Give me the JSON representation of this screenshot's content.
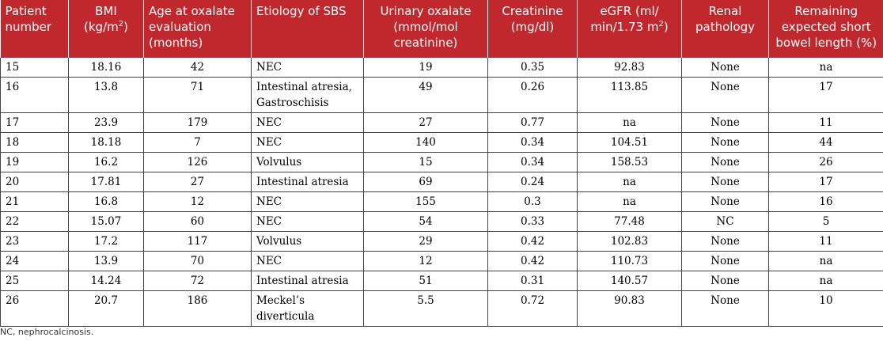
{
  "table": {
    "headers": [
      {
        "text": "Patient number",
        "sup": "",
        "after": ""
      },
      {
        "text": "BMI (kg/m",
        "sup": "2",
        "after": ")"
      },
      {
        "text": "Age at oxalate evaluation (months)",
        "sup": "",
        "after": ""
      },
      {
        "text": "Etiology of SBS",
        "sup": "",
        "after": ""
      },
      {
        "text": "Urinary oxalate (mmol/mol creatinine)",
        "sup": "",
        "after": ""
      },
      {
        "text": "Creatinine (mg/dl)",
        "sup": "",
        "after": ""
      },
      {
        "text": "eGFR (ml/ min/1.73 m",
        "sup": "2",
        "after": ")"
      },
      {
        "text": "Renal pathology",
        "sup": "",
        "after": ""
      },
      {
        "text": "Remaining expected short bowel length (%)",
        "sup": "",
        "after": ""
      }
    ],
    "rows": [
      [
        "15",
        "18.16",
        "42",
        "NEC",
        "19",
        "0.35",
        "92.83",
        "None",
        "na"
      ],
      [
        "16",
        "13.8",
        "71",
        "Intestinal atresia, Gastroschisis",
        "49",
        "0.26",
        "113.85",
        "None",
        "17"
      ],
      [
        "17",
        "23.9",
        "179",
        "NEC",
        "27",
        "0.77",
        "na",
        "None",
        "11"
      ],
      [
        "18",
        "18.18",
        "7",
        "NEC",
        "140",
        "0.34",
        "104.51",
        "None",
        "44"
      ],
      [
        "19",
        "16.2",
        "126",
        "Volvulus",
        "15",
        "0.34",
        "158.53",
        "None",
        "26"
      ],
      [
        "20",
        "17.81",
        "27",
        "Intestinal atresia",
        "69",
        "0.24",
        "na",
        "None",
        "17"
      ],
      [
        "21",
        "16.8",
        "12",
        "NEC",
        "155",
        "0.3",
        "na",
        "None",
        "16"
      ],
      [
        "22",
        "15.07",
        "60",
        "NEC",
        "54",
        "0.33",
        "77.48",
        "NC",
        "5"
      ],
      [
        "23",
        "17.2",
        "117",
        "Volvulus",
        "29",
        "0.42",
        "102.83",
        "None",
        "11"
      ],
      [
        "24",
        "13.9",
        "70",
        "NEC",
        "12",
        "0.42",
        "110.73",
        "None",
        "na"
      ],
      [
        "25",
        "14.24",
        "72",
        "Intestinal atresia",
        "51",
        "0.31",
        "140.57",
        "None",
        "na"
      ],
      [
        "26",
        "20.7",
        "186",
        "Meckel’s diverticula",
        "5.5",
        "0.72",
        "90.83",
        "None",
        "10"
      ]
    ]
  },
  "footnote": "NC, nephrocalcinosis.",
  "colors": {
    "header_bg": "#c1282e",
    "header_text": "#ffffff"
  }
}
